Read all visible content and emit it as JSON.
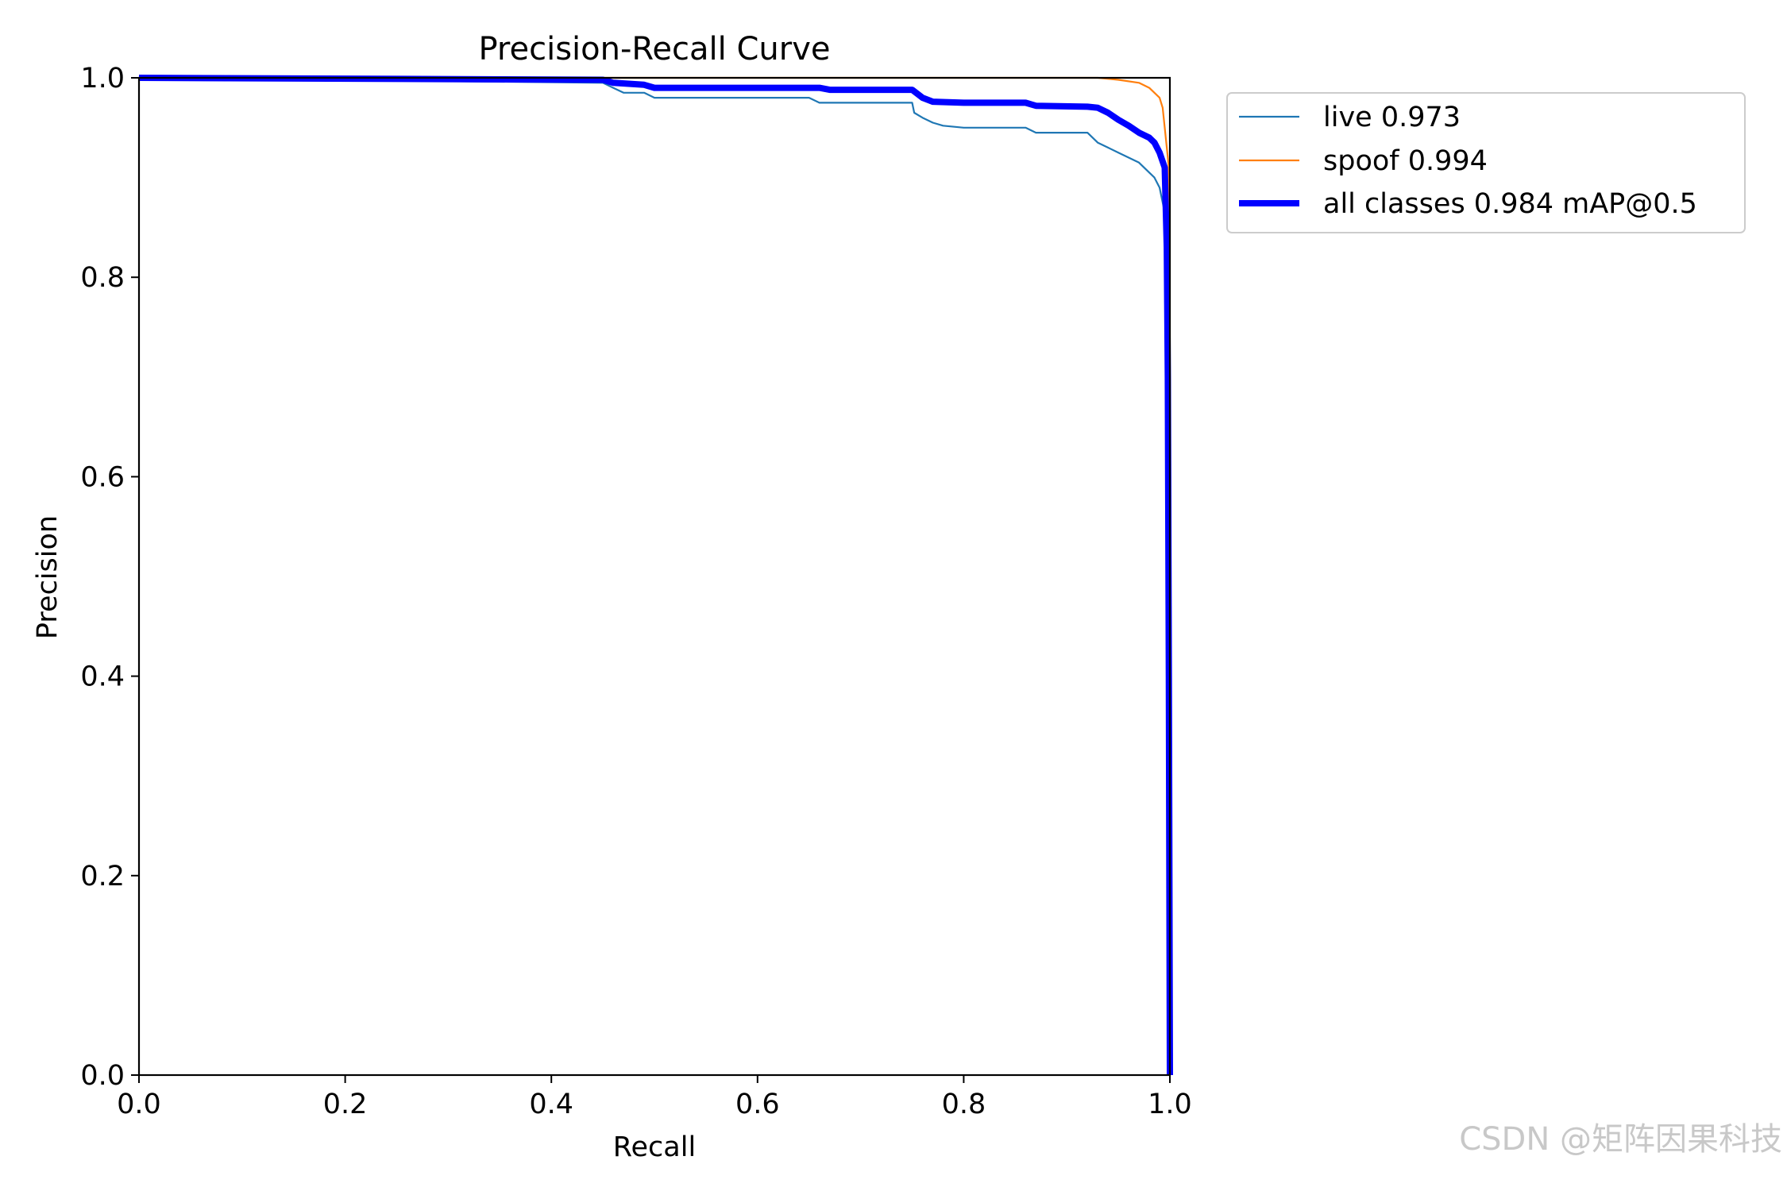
{
  "chart_data": {
    "type": "line",
    "title": "Precision-Recall Curve",
    "xlabel": "Recall",
    "ylabel": "Precision",
    "xlim": [
      0.0,
      1.0
    ],
    "ylim": [
      0.0,
      1.0
    ],
    "xticks": [
      "0.0",
      "0.2",
      "0.4",
      "0.6",
      "0.8",
      "1.0"
    ],
    "yticks": [
      "0.0",
      "0.2",
      "0.4",
      "0.6",
      "0.8",
      "1.0"
    ],
    "grid": false,
    "legend_position": "outside-upper-right",
    "series": [
      {
        "name": "live 0.973",
        "color": "#1f77b4",
        "width": "thin",
        "x": [
          0.0,
          0.45,
          0.46,
          0.47,
          0.49,
          0.5,
          0.65,
          0.66,
          0.67,
          0.75,
          0.752,
          0.76,
          0.77,
          0.78,
          0.8,
          0.86,
          0.87,
          0.92,
          0.93,
          0.94,
          0.95,
          0.96,
          0.97,
          0.98,
          0.985,
          0.99,
          0.993,
          0.995,
          0.997,
          0.998,
          0.999,
          1.0
        ],
        "y": [
          1.0,
          0.995,
          0.99,
          0.985,
          0.985,
          0.98,
          0.98,
          0.975,
          0.975,
          0.975,
          0.965,
          0.96,
          0.955,
          0.952,
          0.95,
          0.95,
          0.945,
          0.945,
          0.935,
          0.93,
          0.925,
          0.92,
          0.915,
          0.905,
          0.9,
          0.89,
          0.875,
          0.865,
          0.85,
          0.8,
          0.5,
          0.0
        ]
      },
      {
        "name": "spoof 0.994",
        "color": "#ff7f0e",
        "width": "thin",
        "x": [
          0.0,
          0.93,
          0.95,
          0.97,
          0.98,
          0.985,
          0.99,
          0.993,
          0.995,
          0.997,
          0.999,
          1.0,
          1.0
        ],
        "y": [
          1.0,
          1.0,
          0.998,
          0.995,
          0.99,
          0.985,
          0.98,
          0.97,
          0.95,
          0.93,
          0.91,
          0.5,
          0.0
        ]
      },
      {
        "name": "all classes 0.984 mAP@0.5",
        "color": "#0000ff",
        "width": "thick",
        "x": [
          0.0,
          0.45,
          0.46,
          0.49,
          0.5,
          0.66,
          0.67,
          0.75,
          0.76,
          0.77,
          0.8,
          0.86,
          0.87,
          0.92,
          0.93,
          0.94,
          0.95,
          0.96,
          0.97,
          0.98,
          0.985,
          0.99,
          0.995,
          0.997,
          0.998,
          0.999,
          1.0
        ],
        "y": [
          1.0,
          0.998,
          0.995,
          0.993,
          0.99,
          0.99,
          0.988,
          0.988,
          0.98,
          0.976,
          0.975,
          0.975,
          0.972,
          0.971,
          0.97,
          0.965,
          0.958,
          0.952,
          0.945,
          0.94,
          0.935,
          0.925,
          0.91,
          0.83,
          0.7,
          0.4,
          0.0
        ]
      }
    ]
  },
  "watermark": "CSDN @矩阵因果科技"
}
